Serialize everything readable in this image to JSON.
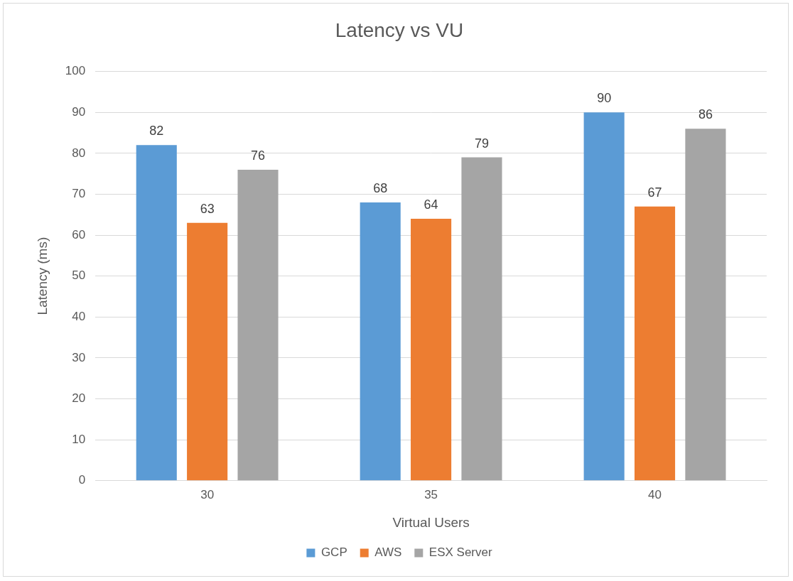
{
  "chart_data": {
    "type": "bar",
    "title": "Latency vs VU",
    "x_label": "Virtual Users",
    "y_label": "Latency (ms)",
    "categories": [
      "30",
      "35",
      "40"
    ],
    "series": [
      {
        "name": "GCP",
        "color": "#5b9bd5",
        "values": [
          82,
          68,
          90
        ]
      },
      {
        "name": "AWS",
        "color": "#ed7d31",
        "values": [
          63,
          64,
          67
        ]
      },
      {
        "name": "ESX Server",
        "color": "#a5a5a5",
        "values": [
          76,
          79,
          86
        ]
      }
    ],
    "ylim": [
      0,
      100
    ],
    "yticks": [
      0,
      10,
      20,
      30,
      40,
      50,
      60,
      70,
      80,
      90,
      100
    ],
    "grid": true,
    "legend": "bottom",
    "data_labels": true
  }
}
